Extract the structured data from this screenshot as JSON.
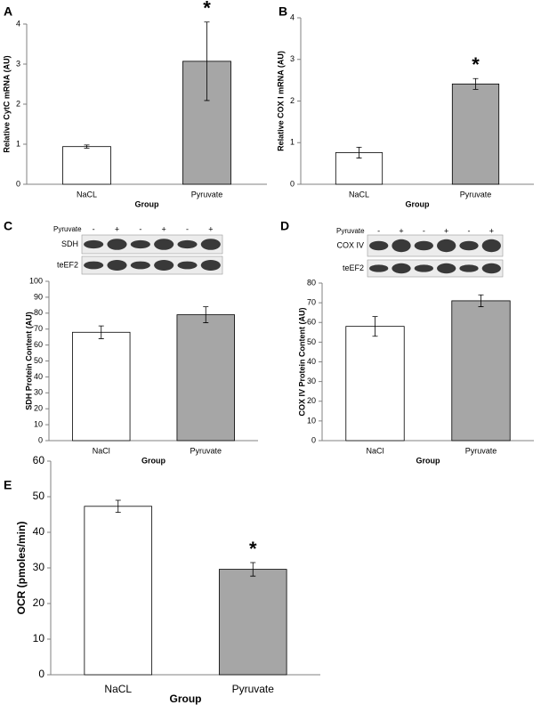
{
  "chart_data": [
    {
      "type": "bar",
      "panel": "A",
      "ylabel": "Relative CytC mRNA (AU)",
      "xlabel": "Group",
      "categories": [
        "NaCL",
        "Pyruvate"
      ],
      "values": [
        0.94,
        3.07
      ],
      "errors": [
        0.04,
        0.98
      ],
      "colors": [
        "#ffffff",
        "#a6a6a6"
      ],
      "ylim": [
        0,
        4
      ],
      "yticks": [
        0,
        1,
        2,
        3,
        4
      ],
      "significance_marker": "*",
      "significant": [
        false,
        true
      ]
    },
    {
      "type": "bar",
      "panel": "B",
      "ylabel": "Relative COX I mRNA (AU)",
      "xlabel": "Group",
      "categories": [
        "NaCL",
        "Pyruvate"
      ],
      "values": [
        0.76,
        2.41
      ],
      "errors": [
        0.13,
        0.13
      ],
      "colors": [
        "#ffffff",
        "#a6a6a6"
      ],
      "ylim": [
        0,
        4
      ],
      "yticks": [
        0,
        1,
        2,
        3,
        4
      ],
      "significance_marker": "*",
      "significant": [
        false,
        true
      ]
    },
    {
      "type": "bar",
      "panel": "C",
      "ylabel": "SDH Protein Content (AU)",
      "xlabel": "Group",
      "categories": [
        "NaCl",
        "Pyruvate"
      ],
      "values": [
        68,
        79
      ],
      "errors": [
        4,
        5
      ],
      "colors": [
        "#ffffff",
        "#a6a6a6"
      ],
      "ylim": [
        0,
        100
      ],
      "yticks": [
        0,
        10,
        20,
        30,
        40,
        50,
        60,
        70,
        80,
        90,
        100
      ],
      "blot": {
        "treatment": "Pyruvate",
        "lanes": [
          "-",
          "+",
          "-",
          "+",
          "-",
          "+"
        ],
        "rows": [
          "SDH",
          "teEF2"
        ]
      }
    },
    {
      "type": "bar",
      "panel": "D",
      "ylabel": "COX IV Protein Content (AU)",
      "xlabel": "Group",
      "categories": [
        "NaCl",
        "Pyruvate"
      ],
      "values": [
        58,
        71
      ],
      "errors": [
        5,
        3
      ],
      "colors": [
        "#ffffff",
        "#a6a6a6"
      ],
      "ylim": [
        0,
        80
      ],
      "yticks": [
        0,
        10,
        20,
        30,
        40,
        50,
        60,
        70,
        80
      ],
      "blot": {
        "treatment": "Pyruvate",
        "lanes": [
          "-",
          "+",
          "-",
          "+",
          "-",
          "+"
        ],
        "rows": [
          "COX IV",
          "teEF2"
        ]
      }
    },
    {
      "type": "bar",
      "panel": "E",
      "ylabel": "OCR (pmoles/min)",
      "xlabel": "Group",
      "categories": [
        "NaCL",
        "Pyruvate"
      ],
      "values": [
        47.3,
        29.6
      ],
      "errors": [
        1.7,
        1.9
      ],
      "colors": [
        "#ffffff",
        "#a6a6a6"
      ],
      "ylim": [
        0,
        60
      ],
      "yticks": [
        0,
        10,
        20,
        30,
        40,
        50,
        60
      ],
      "significance_marker": "*",
      "significant": [
        false,
        true
      ]
    }
  ]
}
